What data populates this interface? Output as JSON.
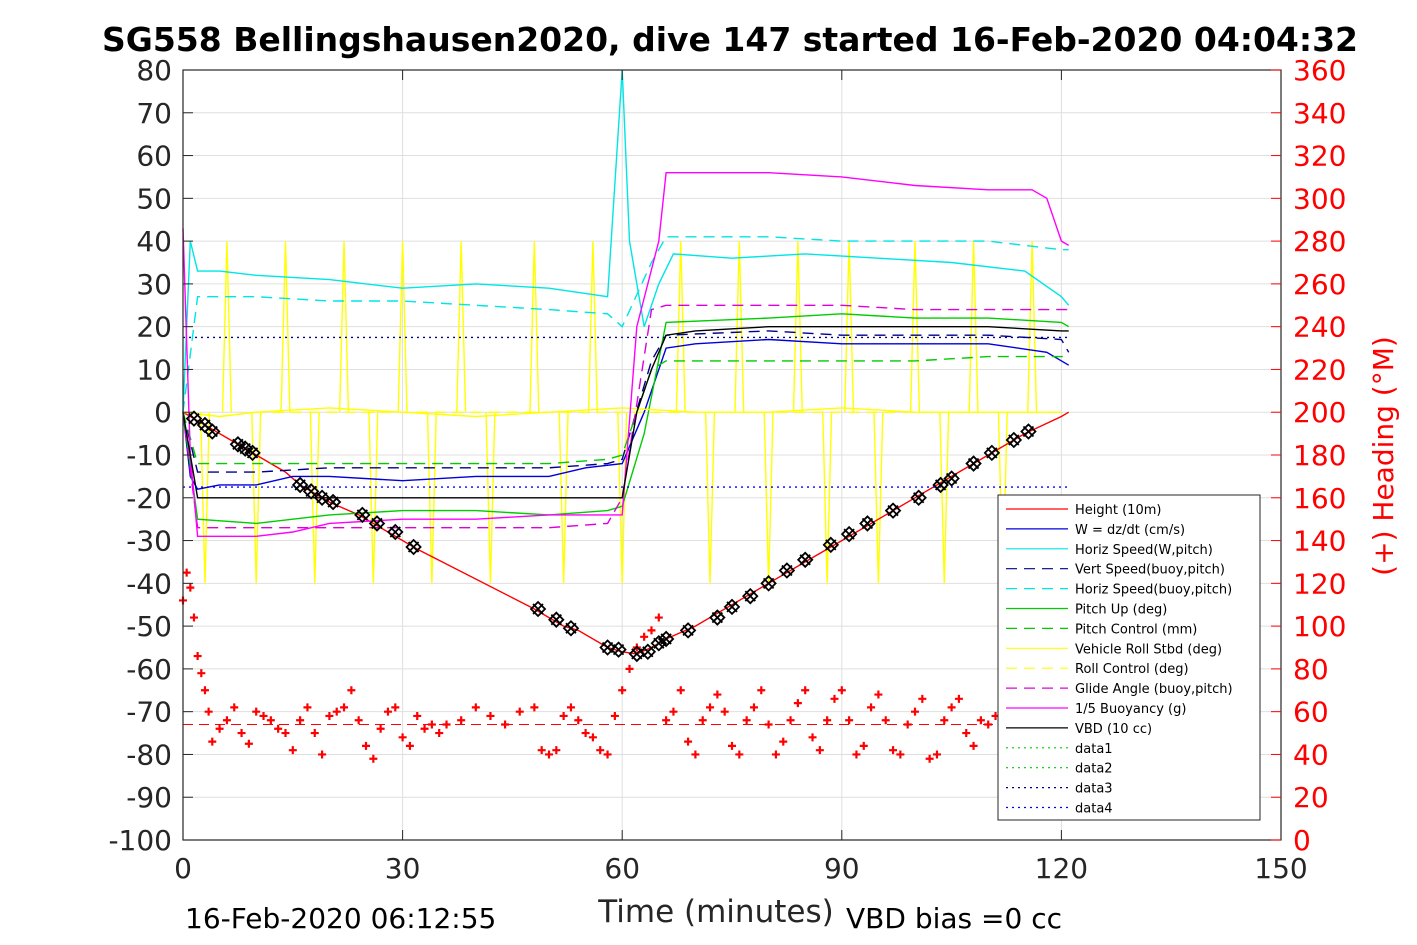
{
  "chart_data": {
    "type": "line",
    "title": "SG558 Bellingshausen2020, dive 147 started 16-Feb-2020 04:04:32",
    "xlabel": "Time (minutes)",
    "ylabel": "",
    "y2label": "(+) Heading (°M)",
    "xlim": [
      0,
      150
    ],
    "ylim": [
      -100,
      80
    ],
    "y2lim": [
      0,
      360
    ],
    "xticks": [
      "0",
      "30",
      "60",
      "90",
      "120",
      "150"
    ],
    "yticks": [
      "80",
      "70",
      "60",
      "50",
      "40",
      "30",
      "20",
      "10",
      "0",
      "-10",
      "-20",
      "-30",
      "-40",
      "-50",
      "-60",
      "-70",
      "-80",
      "-90",
      "-100"
    ],
    "y2ticks": [
      "360",
      "340",
      "320",
      "300",
      "280",
      "260",
      "240",
      "220",
      "200",
      "180",
      "160",
      "140",
      "120",
      "100",
      "80",
      "60",
      "40",
      "20",
      "0"
    ],
    "grid": true,
    "legend_position": "bottom-right",
    "footer_left": "16-Feb-2020 06:12:55",
    "footer_right": "VBD bias =0 cc",
    "series": [
      {
        "name": "Height (10m)",
        "color": "#ff0000",
        "style": "solid",
        "x": [
          0,
          2,
          4,
          6,
          8,
          10,
          14,
          16,
          18,
          20,
          24,
          28,
          32,
          48,
          50,
          52,
          54,
          58,
          60,
          62,
          64,
          66,
          70,
          75,
          80,
          85,
          90,
          95,
          100,
          105,
          110,
          115,
          120,
          121
        ],
        "values": [
          0,
          -2,
          -4,
          -6,
          -8,
          -10,
          -14,
          -17,
          -19,
          -21,
          -24,
          -28,
          -32,
          -46,
          -48,
          -50,
          -51,
          -55,
          -56,
          -56.5,
          -55,
          -53,
          -50,
          -45,
          -40,
          -35,
          -30,
          -25,
          -20,
          -15,
          -10,
          -5,
          -1,
          0
        ]
      },
      {
        "name": "W = dz/dt (cm/s)",
        "color": "#0000dd",
        "style": "solid",
        "x": [
          0,
          1,
          2,
          5,
          10,
          15,
          20,
          30,
          40,
          50,
          55,
          60,
          63,
          66,
          70,
          80,
          90,
          100,
          110,
          118,
          121
        ],
        "values": [
          0,
          -15,
          -18,
          -17,
          -17,
          -15,
          -15,
          -16,
          -15,
          -15,
          -13,
          -12,
          0,
          15,
          16,
          17,
          16,
          16,
          16,
          14,
          11
        ]
      },
      {
        "name": "Horiz Speed(W,pitch)",
        "color": "#00e5e5",
        "style": "solid",
        "x": [
          0,
          1,
          2,
          5,
          10,
          20,
          30,
          40,
          50,
          58,
          60,
          61,
          63,
          65,
          67,
          75,
          85,
          95,
          105,
          115,
          120,
          121
        ],
        "values": [
          0,
          40,
          33,
          33,
          32,
          31,
          29,
          30,
          29,
          27,
          80,
          40,
          20,
          30,
          37,
          36,
          37,
          36,
          35,
          33,
          27,
          25
        ]
      },
      {
        "name": "Vert Speed(buoy,pitch)",
        "color": "#00008b",
        "style": "dashed",
        "x": [
          0,
          2,
          10,
          20,
          30,
          40,
          50,
          58,
          60,
          64,
          66,
          80,
          90,
          100,
          110,
          120,
          121
        ],
        "values": [
          0,
          -14,
          -14,
          -13,
          -13,
          -13,
          -13,
          -12,
          -11,
          12,
          18,
          19,
          18,
          18,
          18,
          17,
          14
        ]
      },
      {
        "name": "Horiz Speed(buoy,pitch)",
        "color": "#00e5e5",
        "style": "dashed",
        "x": [
          0,
          2,
          5,
          10,
          20,
          30,
          40,
          50,
          58,
          60,
          64,
          66,
          80,
          90,
          100,
          110,
          120,
          121
        ],
        "values": [
          0,
          27,
          27,
          27,
          26,
          26,
          25,
          24,
          23,
          20,
          35,
          41,
          41,
          40,
          40,
          40,
          38,
          38
        ]
      },
      {
        "name": "Pitch Up (deg)",
        "color": "#00cc00",
        "style": "solid",
        "x": [
          0,
          2,
          10,
          20,
          30,
          40,
          50,
          58,
          60,
          63,
          66,
          80,
          90,
          100,
          110,
          120,
          121
        ],
        "values": [
          0,
          -25,
          -26,
          -24,
          -23,
          -23,
          -24,
          -23,
          -22,
          -5,
          21,
          22,
          23,
          22,
          22,
          21,
          20
        ]
      },
      {
        "name": "Pitch Control (mm)",
        "color": "#00cc00",
        "style": "dashed",
        "x": [
          0,
          2,
          10,
          20,
          30,
          40,
          50,
          58,
          60,
          64,
          66,
          80,
          90,
          100,
          110,
          120,
          121
        ],
        "values": [
          0,
          -12,
          -12,
          -12,
          -12,
          -12,
          -12,
          -11,
          -10,
          10,
          12,
          12,
          12,
          12,
          13,
          13,
          13
        ]
      },
      {
        "name": "Vehicle Roll Stbd (deg)",
        "color": "#ffff00",
        "style": "solid",
        "x": [
          0,
          5,
          10,
          20,
          30,
          40,
          50,
          60,
          70,
          80,
          90,
          100,
          110,
          120
        ],
        "values": [
          0,
          -1,
          0,
          1,
          0,
          -1,
          0,
          1,
          0,
          0,
          1,
          0,
          0,
          0
        ]
      },
      {
        "name": "Roll Control (deg)",
        "color": "#ffff00",
        "style": "dashed",
        "x": [
          0,
          5,
          10,
          20,
          30,
          40,
          50,
          60,
          70,
          80,
          90,
          100,
          110,
          120
        ],
        "values": [
          0,
          -1,
          0,
          0,
          0,
          0,
          0,
          0,
          0,
          0,
          0,
          0,
          0,
          0
        ]
      },
      {
        "name": "Glide Angle (buoy,pitch)",
        "color": "#dd00dd",
        "style": "dashed",
        "x": [
          0,
          2,
          10,
          20,
          30,
          40,
          50,
          58,
          60,
          64,
          66,
          80,
          90,
          100,
          110,
          120,
          121
        ],
        "values": [
          0,
          -27,
          -27,
          -27,
          -27,
          -27,
          -27,
          -26,
          -20,
          24,
          25,
          25,
          25,
          24,
          24,
          24,
          24
        ]
      },
      {
        "name": "1/5 Buoyancy (g)",
        "color": "#ff00ff",
        "style": "solid",
        "x": [
          0,
          1,
          2,
          5,
          10,
          15,
          20,
          30,
          40,
          50,
          58,
          60,
          62,
          65,
          66,
          80,
          90,
          100,
          110,
          116,
          118,
          120,
          121
        ],
        "values": [
          43,
          -10,
          -29,
          -29,
          -29,
          -28,
          -26,
          -25,
          -25,
          -24,
          -24,
          -24,
          20,
          40,
          56,
          56,
          55,
          53,
          52,
          52,
          50,
          40,
          39
        ]
      },
      {
        "name": "VBD (10 cc)",
        "color": "#000000",
        "style": "solid",
        "x": [
          0,
          1,
          2,
          20,
          40,
          60,
          62,
          64,
          66,
          70,
          80,
          90,
          100,
          110,
          120,
          121
        ],
        "values": [
          0,
          -10,
          -20,
          -20,
          -20,
          -20,
          0,
          10,
          18,
          19,
          20,
          20,
          20,
          20,
          19,
          19
        ]
      },
      {
        "name": "data1",
        "color": "#00cc00",
        "style": "dotted",
        "x": [],
        "values": []
      },
      {
        "name": "data2",
        "color": "#00cc00",
        "style": "dotted",
        "x": [],
        "values": []
      },
      {
        "name": "data3",
        "color": "#00008b",
        "style": "dotted",
        "x": [
          0,
          121
        ],
        "values": [
          17.5,
          17.5
        ]
      },
      {
        "name": "data4",
        "color": "#0000ff",
        "style": "dotted",
        "x": [
          0,
          121
        ],
        "values": [
          -17.5,
          -17.5
        ]
      }
    ],
    "heading": {
      "axis": "right",
      "color": "#ff0000",
      "marker": "+",
      "mean_line_value": 54,
      "x": [
        0,
        0.5,
        1,
        1.5,
        2,
        2.5,
        3,
        3.5,
        4,
        5,
        6,
        7,
        8,
        9,
        10,
        11,
        12,
        13,
        14,
        15,
        16,
        17,
        18,
        19,
        20,
        21,
        22,
        23,
        24,
        25,
        26,
        27,
        28,
        29,
        30,
        31,
        32,
        33,
        34,
        35,
        36,
        38,
        40,
        42,
        44,
        46,
        48,
        49,
        50,
        51,
        52,
        53,
        54,
        55,
        56,
        57,
        58,
        59,
        60,
        61,
        62,
        63,
        64,
        65,
        66,
        67,
        68,
        69,
        70,
        71,
        72,
        73,
        74,
        75,
        76,
        77,
        78,
        79,
        80,
        81,
        82,
        83,
        84,
        85,
        86,
        87,
        88,
        89,
        90,
        91,
        92,
        93,
        94,
        95,
        96,
        97,
        98,
        99,
        100,
        101,
        102,
        103,
        104,
        105,
        106,
        107,
        108,
        109,
        110,
        111
      ],
      "values": [
        112,
        125,
        118,
        104,
        86,
        78,
        70,
        60,
        46,
        52,
        56,
        62,
        50,
        45,
        60,
        58,
        56,
        52,
        50,
        42,
        56,
        62,
        50,
        40,
        58,
        60,
        62,
        70,
        56,
        44,
        38,
        52,
        60,
        62,
        48,
        44,
        58,
        52,
        54,
        50,
        54,
        56,
        62,
        58,
        54,
        60,
        62,
        42,
        40,
        42,
        58,
        62,
        56,
        50,
        48,
        42,
        40,
        58,
        70,
        80,
        90,
        95,
        98,
        104,
        56,
        60,
        70,
        46,
        40,
        56,
        62,
        68,
        60,
        44,
        40,
        56,
        62,
        70,
        54,
        40,
        46,
        56,
        64,
        70,
        48,
        42,
        56,
        66,
        70,
        56,
        40,
        44,
        62,
        68,
        56,
        42,
        40,
        54,
        60,
        66,
        38,
        40,
        56,
        62,
        66,
        50,
        44,
        56,
        54,
        58
      ]
    },
    "depth_markers": {
      "marker": "diamond",
      "x": [
        1.5,
        3,
        4,
        7.5,
        8.5,
        9.5,
        16,
        17.5,
        19,
        20.5,
        24.5,
        26.5,
        29,
        31.5,
        48.5,
        51,
        53,
        58,
        59.5,
        62,
        63.5,
        65,
        66,
        69,
        73,
        75,
        77.5,
        80,
        82.5,
        85,
        88.5,
        91,
        93.5,
        97,
        100.5,
        103.5,
        105,
        108,
        110.5,
        113.5,
        115.5
      ],
      "values": [
        -1.5,
        -3,
        -4.5,
        -7.5,
        -8.5,
        -9.5,
        -17,
        -18.5,
        -20,
        -21,
        -24,
        -26,
        -28,
        -31.5,
        -46,
        -48.5,
        -50.5,
        -55,
        -55.5,
        -56.5,
        -56,
        -54,
        -53,
        -51,
        -48,
        -45.5,
        -43,
        -40,
        -37,
        -34.5,
        -31,
        -28.5,
        -26,
        -23,
        -20,
        -17,
        -15.5,
        -12,
        -9.5,
        -6.5,
        -4.5
      ]
    },
    "roll_spikes": {
      "color": "#ffff00",
      "up_x": [
        6,
        14,
        22,
        30,
        38,
        48,
        56,
        68,
        76,
        84,
        91,
        100,
        108,
        116
      ],
      "down_x": [
        3,
        10,
        18,
        26,
        34,
        42,
        52,
        60,
        72,
        80,
        88,
        95,
        104,
        112
      ]
    }
  }
}
